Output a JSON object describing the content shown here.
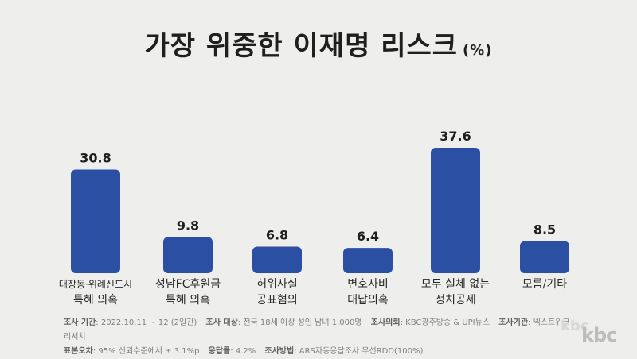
{
  "title": "가장 위중한 이재명 리스크",
  "title_unit": "(%)",
  "chart_data": {
    "type": "bar",
    "title": "가장 위중한 이재명 리스크",
    "unit": "(%)",
    "categories": [
      [
        "대장동·위례신도시",
        "특혜 의혹"
      ],
      [
        "성남FC후원금",
        "특혜 의혹"
      ],
      [
        "허위사실",
        "공표혐의"
      ],
      [
        "변호사비",
        "대납의혹"
      ],
      [
        "모두 실체 없는",
        "정치공세"
      ],
      [
        "모름/기타"
      ]
    ],
    "values": [
      30.8,
      9.8,
      6.8,
      6.4,
      37.6,
      8.5
    ],
    "value_labels": [
      "30.8",
      "9.8",
      "6.8",
      "6.4",
      "37.6",
      "8.5"
    ],
    "ylim": [
      0,
      37.6
    ],
    "grid": false,
    "bar_color": "#2b4fa2"
  },
  "footer": {
    "period_label": "조사 기간",
    "period_value": ": 2022.10.11 ~ 12 (2일간)",
    "target_label": "조사 대상",
    "target_value": ": 전국 18세 이상 성인 남녀 1,000명",
    "client_label": "조사의뢰",
    "client_value": ": KBC광주방송 & UPI뉴스",
    "agency_label": "조사기관",
    "agency_value": ": 넥스트위크리서치",
    "error_label": "표본오차",
    "error_value": ": 95% 신뢰수준에서 ± 3.1%p",
    "response_label": "응답률",
    "response_value": ": 4.2%",
    "method_label": "조사방법",
    "method_value": ": ARS자동응답조사 무선RDD(100%)"
  },
  "logo": "kbc"
}
